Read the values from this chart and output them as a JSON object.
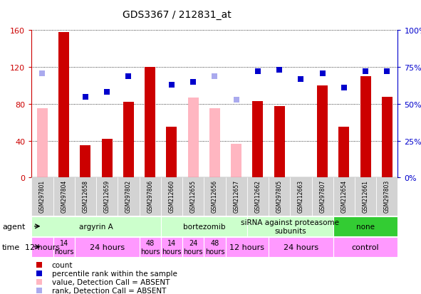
{
  "title": "GDS3367 / 212831_at",
  "samples": [
    "GSM297801",
    "GSM297804",
    "GSM212658",
    "GSM212659",
    "GSM297802",
    "GSM297806",
    "GSM212660",
    "GSM212655",
    "GSM212656",
    "GSM212657",
    "GSM212662",
    "GSM297805",
    "GSM212663",
    "GSM297807",
    "GSM212654",
    "GSM212661",
    "GSM297803"
  ],
  "counts": [
    null,
    158,
    35,
    42,
    82,
    120,
    55,
    null,
    null,
    null,
    83,
    78,
    null,
    100,
    55,
    110,
    88
  ],
  "counts_absent": [
    75,
    null,
    null,
    null,
    null,
    null,
    null,
    87,
    75,
    37,
    null,
    null,
    null,
    null,
    null,
    null,
    null
  ],
  "percentile": [
    null,
    null,
    55,
    58,
    69,
    null,
    63,
    65,
    null,
    null,
    72,
    73,
    67,
    71,
    61,
    72,
    72
  ],
  "percentile_absent": [
    71,
    null,
    null,
    null,
    null,
    null,
    null,
    null,
    69,
    53,
    null,
    null,
    null,
    null,
    null,
    null,
    null
  ],
  "ylim_left": [
    0,
    160
  ],
  "ylim_right": [
    0,
    100
  ],
  "yticks_left": [
    0,
    40,
    80,
    120,
    160
  ],
  "yticks_right": [
    0,
    25,
    50,
    75,
    100
  ],
  "ytick_labels_right": [
    "0%",
    "25%",
    "50%",
    "75%",
    "100%"
  ],
  "color_count": "#CC0000",
  "color_count_absent": "#FFB6C1",
  "color_pct": "#0000CC",
  "color_pct_absent": "#AAAAEE",
  "agent_groups": [
    {
      "label": "argyrin A",
      "start": 0,
      "end": 6,
      "color": "#ccffcc"
    },
    {
      "label": "bortezomib",
      "start": 6,
      "end": 10,
      "color": "#ccffcc"
    },
    {
      "label": "siRNA against proteasome\nsubunits",
      "start": 10,
      "end": 14,
      "color": "#ccffcc"
    },
    {
      "label": "none",
      "start": 14,
      "end": 17,
      "color": "#33cc33"
    }
  ],
  "time_groups": [
    {
      "label": "12 hours",
      "start": 0,
      "end": 1,
      "color": "#ff99ff",
      "fontsize": 8
    },
    {
      "label": "14\nhours",
      "start": 1,
      "end": 2,
      "color": "#ff99ff",
      "fontsize": 7
    },
    {
      "label": "24 hours",
      "start": 2,
      "end": 5,
      "color": "#ff99ff",
      "fontsize": 8
    },
    {
      "label": "48\nhours",
      "start": 5,
      "end": 6,
      "color": "#ff99ff",
      "fontsize": 7
    },
    {
      "label": "14\nhours",
      "start": 6,
      "end": 7,
      "color": "#ff99ff",
      "fontsize": 7
    },
    {
      "label": "24\nhours",
      "start": 7,
      "end": 8,
      "color": "#ff99ff",
      "fontsize": 7
    },
    {
      "label": "48\nhours",
      "start": 8,
      "end": 9,
      "color": "#ff99ff",
      "fontsize": 7
    },
    {
      "label": "12 hours",
      "start": 9,
      "end": 11,
      "color": "#ff99ff",
      "fontsize": 8
    },
    {
      "label": "24 hours",
      "start": 11,
      "end": 14,
      "color": "#ff99ff",
      "fontsize": 8
    },
    {
      "label": "control",
      "start": 14,
      "end": 17,
      "color": "#ff99ff",
      "fontsize": 8
    }
  ],
  "bar_width": 0.5,
  "marker_size": 6
}
